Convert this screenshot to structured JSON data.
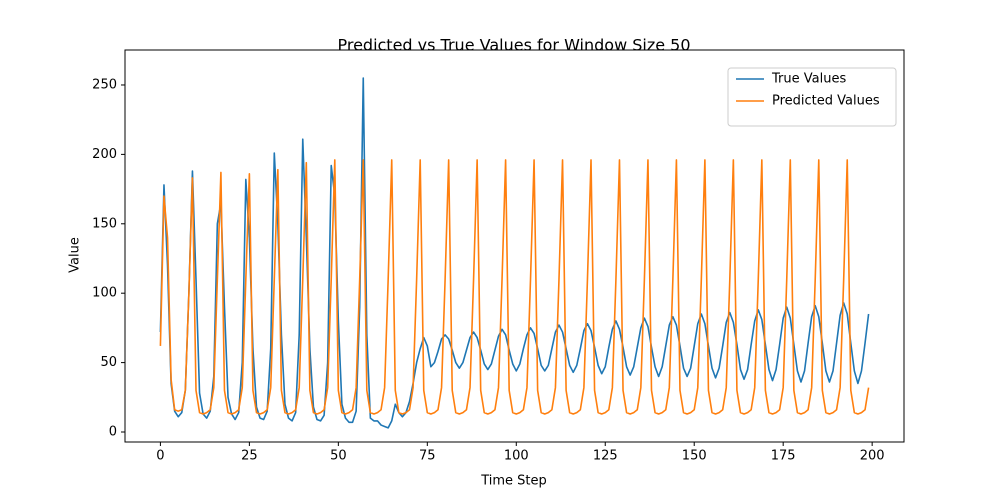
{
  "chart_data": {
    "type": "line",
    "title": "Predicted vs True Values for Window Size 50",
    "x_label": "Time Step",
    "y_label": "Value",
    "xlim": [
      -9.95,
      208.95
    ],
    "ylim": [
      -7.2,
      275.2
    ],
    "xticks": [
      0,
      25,
      50,
      75,
      100,
      125,
      150,
      175,
      200
    ],
    "yticks": [
      0,
      50,
      100,
      150,
      200,
      250
    ],
    "legend": "upper right",
    "series": [
      {
        "name": "True Values",
        "color": "#1f77b4",
        "values": [
          72,
          178,
          120,
          35,
          15,
          11,
          14,
          30,
          100,
          188,
          110,
          28,
          13,
          10,
          15,
          40,
          150,
          165,
          90,
          25,
          13,
          9,
          14,
          50,
          182,
          140,
          60,
          18,
          10,
          9,
          15,
          60,
          201,
          150,
          70,
          20,
          10,
          8,
          14,
          70,
          211,
          140,
          60,
          18,
          9,
          8,
          12,
          50,
          192,
          170,
          80,
          20,
          10,
          7,
          7,
          15,
          90,
          255,
          70,
          10,
          8,
          8,
          5,
          4,
          3,
          8,
          20,
          14,
          11,
          14,
          22,
          35,
          50,
          60,
          68,
          62,
          47,
          50,
          58,
          67,
          70,
          67,
          59,
          50,
          46,
          50,
          59,
          68,
          72,
          68,
          59,
          49,
          45,
          49,
          59,
          69,
          74,
          70,
          59,
          49,
          44,
          49,
          60,
          70,
          75,
          71,
          60,
          48,
          44,
          48,
          60,
          72,
          77,
          72,
          60,
          48,
          43,
          48,
          60,
          73,
          78,
          73,
          61,
          48,
          42,
          47,
          61,
          74,
          80,
          74,
          61,
          47,
          41,
          47,
          61,
          75,
          82,
          76,
          61,
          47,
          40,
          47,
          62,
          77,
          83,
          77,
          62,
          46,
          40,
          46,
          62,
          78,
          85,
          78,
          62,
          46,
          39,
          46,
          62,
          79,
          86,
          79,
          63,
          45,
          38,
          45,
          63,
          80,
          88,
          81,
          63,
          45,
          37,
          45,
          63,
          82,
          90,
          82,
          63,
          44,
          36,
          44,
          64,
          83,
          91,
          83,
          64,
          44,
          36,
          44,
          64,
          84,
          93,
          85,
          64,
          44,
          35,
          44,
          64,
          85
        ]
      },
      {
        "name": "Predicted Values",
        "color": "#ff7f0e",
        "values": [
          62,
          170,
          140,
          38,
          16,
          15,
          16,
          30,
          100,
          183,
          30,
          14,
          13,
          14,
          16,
          32,
          110,
          187,
          30,
          14,
          13,
          14,
          16,
          32,
          110,
          186,
          30,
          14,
          13,
          14,
          16,
          32,
          110,
          189,
          30,
          14,
          13,
          14,
          16,
          32,
          110,
          194,
          30,
          14,
          13,
          14,
          16,
          32,
          110,
          196,
          30,
          14,
          13,
          14,
          16,
          32,
          110,
          196,
          30,
          14,
          13,
          14,
          16,
          32,
          110,
          196,
          30,
          14,
          13,
          14,
          16,
          32,
          110,
          196,
          30,
          14,
          13,
          14,
          16,
          32,
          110,
          196,
          30,
          14,
          13,
          14,
          16,
          32,
          110,
          196,
          30,
          14,
          13,
          14,
          16,
          32,
          110,
          196,
          30,
          14,
          13,
          14,
          16,
          32,
          110,
          196,
          30,
          14,
          13,
          14,
          16,
          32,
          110,
          196,
          30,
          14,
          13,
          14,
          16,
          32,
          110,
          196,
          30,
          14,
          13,
          14,
          16,
          32,
          110,
          196,
          30,
          14,
          13,
          14,
          16,
          32,
          110,
          196,
          30,
          14,
          13,
          14,
          16,
          32,
          110,
          196,
          30,
          14,
          13,
          14,
          16,
          32,
          110,
          196,
          30,
          14,
          13,
          14,
          16,
          32,
          110,
          196,
          30,
          14,
          13,
          14,
          16,
          32,
          110,
          196,
          30,
          14,
          13,
          14,
          16,
          32,
          110,
          196,
          30,
          14,
          13,
          14,
          16,
          32,
          110,
          196,
          30,
          14,
          13,
          14,
          16,
          32,
          110,
          196,
          30,
          14,
          13,
          14,
          16,
          32
        ]
      }
    ]
  }
}
